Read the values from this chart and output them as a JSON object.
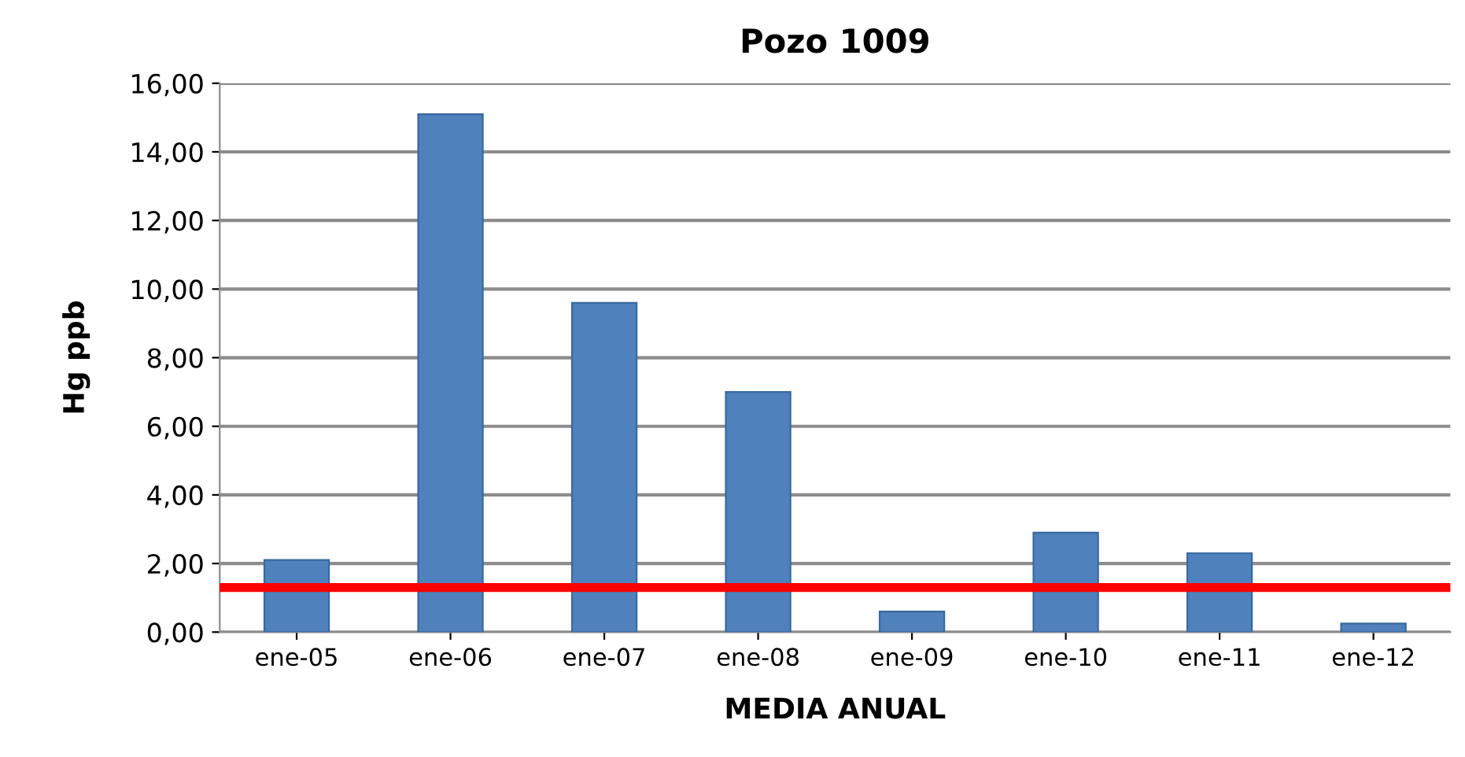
{
  "chart_data": {
    "type": "bar",
    "title": "Pozo 1009",
    "xlabel": "MEDIA ANUAL",
    "ylabel": "Hg ppb",
    "categories": [
      "ene-05",
      "ene-06",
      "ene-07",
      "ene-08",
      "ene-09",
      "ene-10",
      "ene-11",
      "ene-12"
    ],
    "values": [
      2.1,
      15.1,
      9.6,
      7.0,
      0.6,
      2.9,
      2.3,
      0.25
    ],
    "color": "#4f81bd",
    "ylim": [
      0,
      16
    ],
    "yticks": [
      {
        "value": 0,
        "label": "0,00"
      },
      {
        "value": 2,
        "label": "2,00"
      },
      {
        "value": 4,
        "label": "4,00"
      },
      {
        "value": 6,
        "label": "6,00"
      },
      {
        "value": 8,
        "label": "8,00"
      },
      {
        "value": 10,
        "label": "10,00"
      },
      {
        "value": 12,
        "label": "12,00"
      },
      {
        "value": 14,
        "label": "14,00"
      },
      {
        "value": 16,
        "label": "16,00"
      }
    ],
    "grid": "y",
    "ref_lines": [
      {
        "axis": "y",
        "value": 1.3,
        "color": "#ff0000"
      }
    ]
  }
}
